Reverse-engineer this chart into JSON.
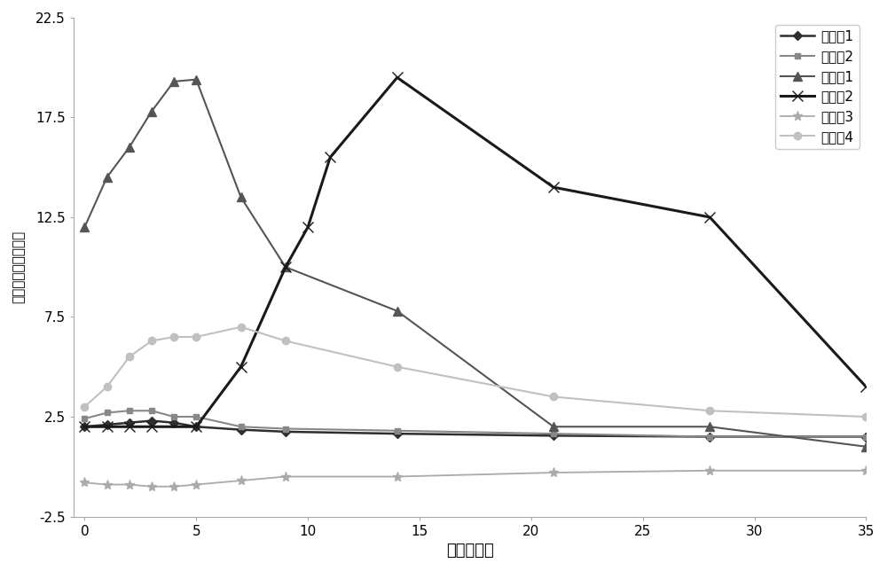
{
  "title": "",
  "xlabel": "时间（天）",
  "ylabel": "二氧化氯释放浓度二",
  "xlim": [
    -0.5,
    35
  ],
  "ylim": [
    -2.5,
    22.5
  ],
  "yticks": [
    -2.5,
    2.5,
    7.5,
    12.5,
    17.5,
    22.5
  ],
  "xticks": [
    0,
    5,
    10,
    15,
    20,
    25,
    30,
    35
  ],
  "series": [
    {
      "label": "实施例1",
      "color": "#2e2e2e",
      "marker": "D",
      "markersize": 5,
      "linewidth": 1.8,
      "x": [
        0,
        1,
        2,
        3,
        4,
        5,
        7,
        9,
        14,
        21,
        28,
        35
      ],
      "y": [
        2.0,
        2.1,
        2.2,
        2.3,
        2.2,
        2.0,
        1.85,
        1.75,
        1.65,
        1.55,
        1.5,
        1.5
      ]
    },
    {
      "label": "实施例2",
      "color": "#888888",
      "marker": "s",
      "markersize": 5,
      "linewidth": 1.5,
      "x": [
        0,
        1,
        2,
        3,
        4,
        5,
        7,
        9,
        14,
        21,
        28,
        35
      ],
      "y": [
        2.4,
        2.7,
        2.8,
        2.8,
        2.5,
        2.5,
        2.0,
        1.9,
        1.8,
        1.65,
        1.5,
        1.5
      ]
    },
    {
      "label": "对比例1",
      "color": "#555555",
      "marker": "^",
      "markersize": 7,
      "linewidth": 1.5,
      "x": [
        0,
        1,
        2,
        3,
        4,
        5,
        7,
        9,
        14,
        21,
        28,
        35
      ],
      "y": [
        12.0,
        14.5,
        16.0,
        17.8,
        19.3,
        19.4,
        13.5,
        10.0,
        7.8,
        2.0,
        2.0,
        1.0
      ]
    },
    {
      "label": "对比例2",
      "color": "#1a1a1a",
      "marker": "x",
      "markersize": 8,
      "linewidth": 2.2,
      "x": [
        0,
        1,
        2,
        3,
        5,
        7,
        9,
        10,
        11,
        14,
        21,
        28,
        35
      ],
      "y": [
        2.0,
        2.0,
        2.0,
        2.0,
        2.0,
        5.0,
        10.0,
        12.0,
        15.5,
        19.5,
        14.0,
        12.5,
        4.0
      ]
    },
    {
      "label": "对比例3",
      "color": "#aaaaaa",
      "marker": "*",
      "markersize": 8,
      "linewidth": 1.3,
      "x": [
        0,
        1,
        2,
        3,
        4,
        5,
        7,
        9,
        14,
        21,
        28,
        35
      ],
      "y": [
        -0.8,
        -0.9,
        -0.9,
        -1.0,
        -1.0,
        -0.9,
        -0.7,
        -0.5,
        -0.5,
        -0.3,
        -0.2,
        -0.2
      ]
    },
    {
      "label": "实施例4",
      "color": "#c0c0c0",
      "marker": "o",
      "markersize": 6,
      "linewidth": 1.5,
      "x": [
        0,
        1,
        2,
        3,
        4,
        5,
        7,
        9,
        14,
        21,
        28,
        35
      ],
      "y": [
        3.0,
        4.0,
        5.5,
        6.3,
        6.5,
        6.5,
        7.0,
        6.3,
        5.0,
        3.5,
        2.8,
        2.5
      ]
    }
  ],
  "legend_loc": "upper right",
  "background_color": "#ffffff",
  "grid": false,
  "figsize": [
    10.0,
    6.44
  ],
  "dpi": 100
}
